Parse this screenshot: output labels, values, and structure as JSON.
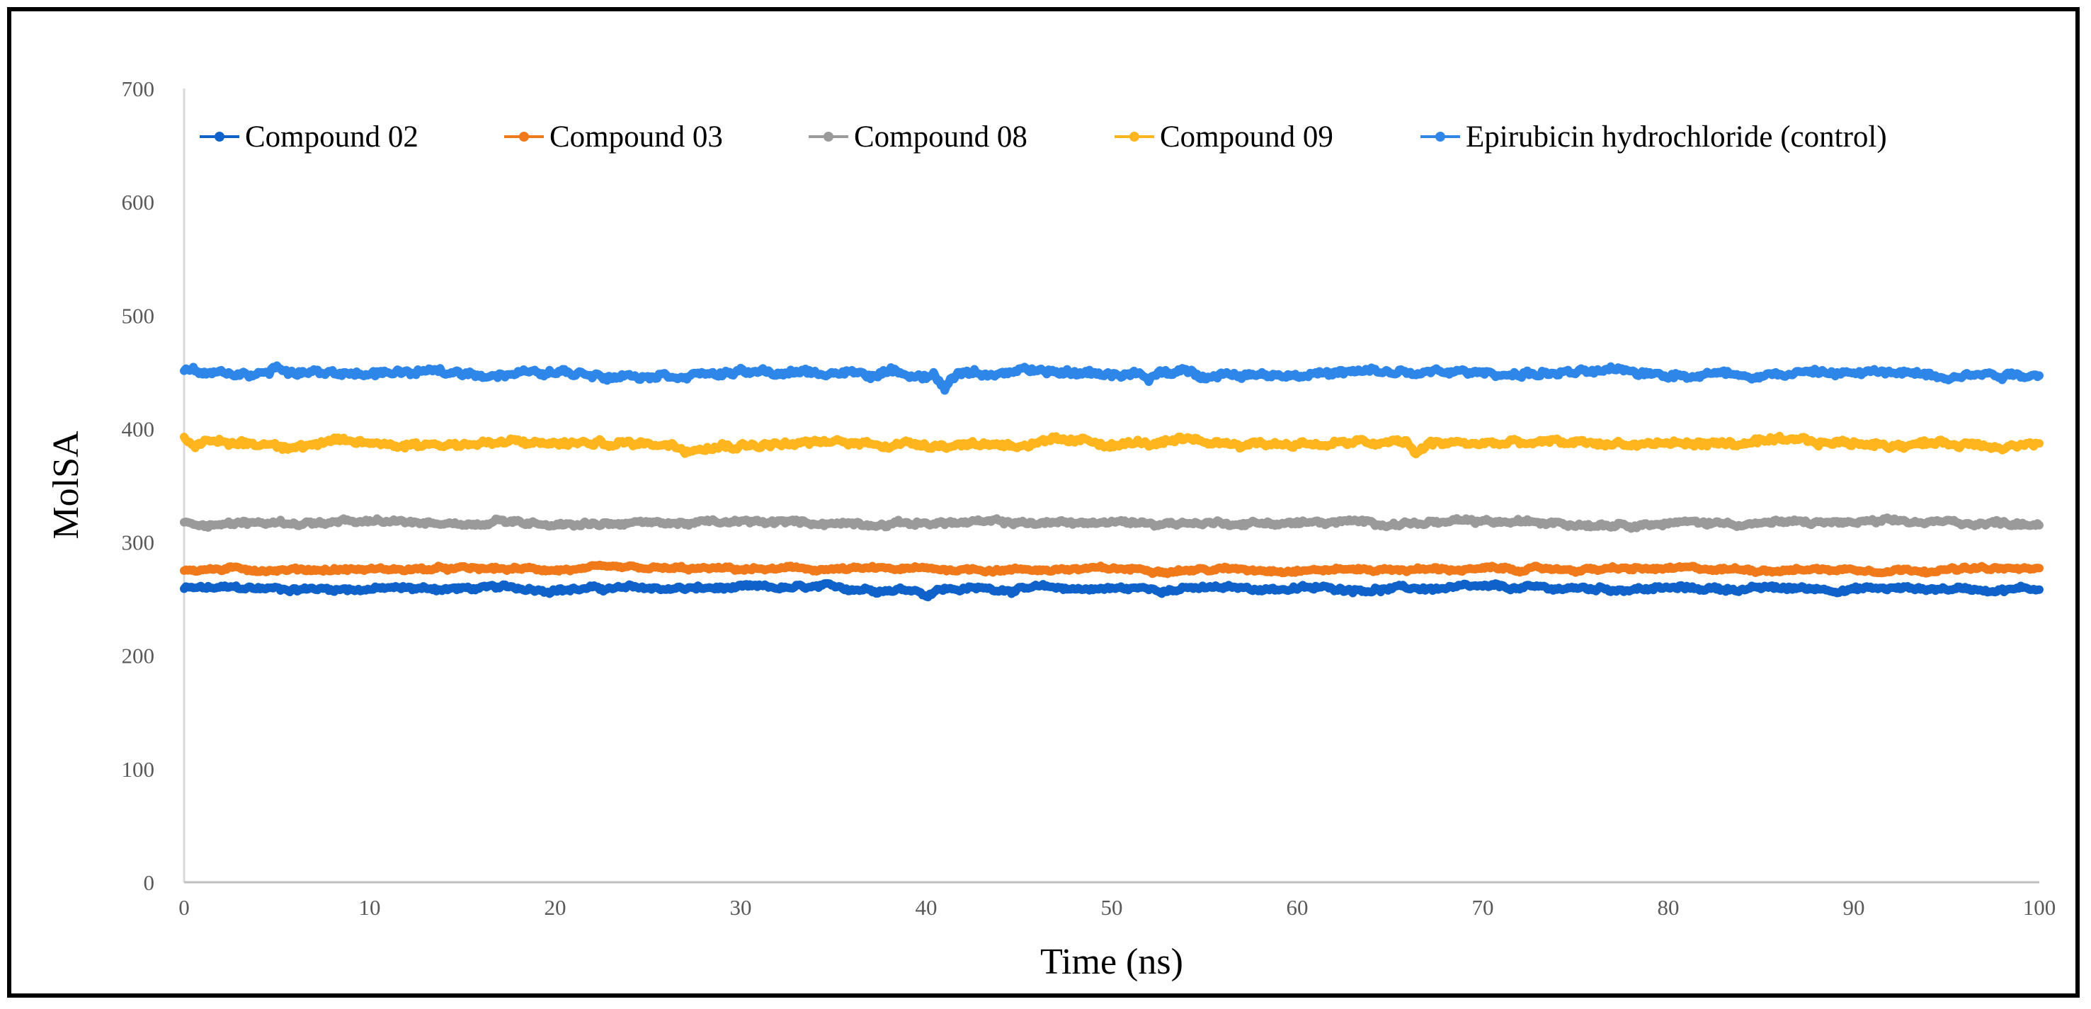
{
  "chart_data": {
    "type": "line",
    "title": "",
    "xlabel": "Time (ns)",
    "ylabel": "MolSA",
    "xlim": [
      0,
      100
    ],
    "ylim": [
      0,
      700
    ],
    "xticks": [
      "0",
      "10",
      "20",
      "30",
      "40",
      "50",
      "60",
      "70",
      "80",
      "90",
      "100"
    ],
    "yticks": [
      "0",
      "100",
      "200",
      "300",
      "400",
      "500",
      "600",
      "700"
    ],
    "grid": false,
    "legend_position": "top",
    "series": [
      {
        "name": "Compound 02",
        "color": "#0F62C9",
        "mean": 259,
        "noise": 2.5,
        "dips": [
          [
            40,
            5
          ]
        ]
      },
      {
        "name": "Compound 03",
        "color": "#F07A1A",
        "mean": 276,
        "noise": 2.0,
        "dips": []
      },
      {
        "name": "Compound 08",
        "color": "#9A9A9A",
        "mean": 317,
        "noise": 2.5,
        "dips": [
          [
            17,
            -4
          ],
          [
            74,
            -3
          ]
        ]
      },
      {
        "name": "Compound 09",
        "color": "#FFB61E",
        "mean": 387,
        "noise": 3.5,
        "dips": [
          [
            0,
            -5
          ],
          [
            66.5,
            10
          ],
          [
            27,
            5
          ]
        ]
      },
      {
        "name": "Epirubicin hydrochloride (control)",
        "color": "#2E86E8",
        "mean": 449,
        "noise": 3.5,
        "dips": [
          [
            41,
            12
          ],
          [
            52,
            8
          ],
          [
            0,
            -4
          ],
          [
            5,
            -5
          ]
        ]
      }
    ]
  }
}
